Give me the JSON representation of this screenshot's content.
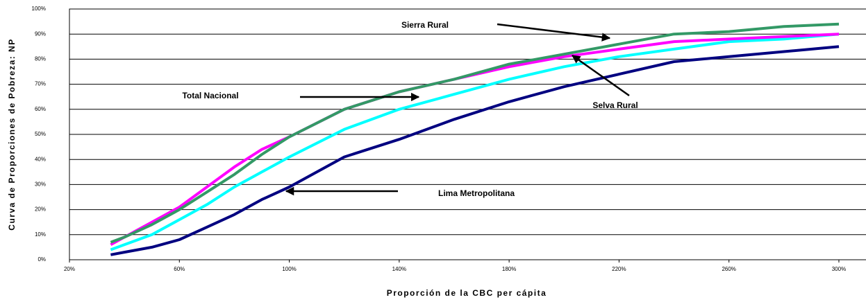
{
  "chart_data": {
    "type": "line",
    "y_label": "Curva de Proporciones de Pobreza:  NP",
    "x_label": "Proporción de la CBC per cápita",
    "annotations": [
      "Sierra Rural",
      "Total Nacional",
      "Selva Rural",
      "Lima Metropolitana"
    ],
    "x": [
      35,
      40,
      50,
      60,
      70,
      80,
      90,
      100,
      120,
      140,
      160,
      180,
      200,
      220,
      240,
      260,
      280,
      300
    ],
    "series": [
      {
        "name": "Lima Metropolitana",
        "color": "#000080",
        "values": [
          2,
          3,
          5,
          8,
          13,
          18,
          24,
          29,
          41,
          48,
          56,
          63,
          69,
          74,
          79,
          81,
          83,
          85
        ]
      },
      {
        "name": "Total Nacional",
        "color": "#00ffff",
        "values": [
          4,
          6,
          10,
          16,
          22,
          29,
          35,
          41,
          52,
          60,
          66,
          72,
          77,
          81,
          84,
          87,
          88,
          90
        ]
      },
      {
        "name": "Selva Rural",
        "color": "#ff00ff",
        "values": [
          6,
          9,
          15,
          21,
          29,
          37,
          44,
          49,
          60,
          67,
          72,
          77,
          81,
          84,
          87,
          88,
          89,
          90
        ]
      },
      {
        "name": "Sierra Rural",
        "color": "#339966",
        "values": [
          7,
          9,
          14,
          20,
          27,
          34,
          42,
          49,
          60,
          67,
          72,
          78,
          82,
          86,
          90,
          91,
          93,
          94
        ]
      }
    ],
    "xlim": [
      20,
      310
    ],
    "xticks": [
      {
        "value": 20,
        "label": "20%"
      },
      {
        "value": 60,
        "label": "60%"
      },
      {
        "value": 100,
        "label": "100%"
      },
      {
        "value": 140,
        "label": "140%"
      },
      {
        "value": 180,
        "label": "180%"
      },
      {
        "value": 220,
        "label": "220%"
      },
      {
        "value": 260,
        "label": "260%"
      },
      {
        "value": 300,
        "label": "300%"
      }
    ],
    "ylim": [
      0,
      100
    ],
    "yticks": [
      {
        "value": 0,
        "label": "0%"
      },
      {
        "value": 10,
        "label": "10%"
      },
      {
        "value": 20,
        "label": "20%"
      },
      {
        "value": 30,
        "label": "30%"
      },
      {
        "value": 40,
        "label": "40%"
      },
      {
        "value": 50,
        "label": "50%"
      },
      {
        "value": 60,
        "label": "60%"
      },
      {
        "value": 70,
        "label": "70%"
      },
      {
        "value": 80,
        "label": "80%"
      },
      {
        "value": 90,
        "label": "90%"
      },
      {
        "value": 100,
        "label": "100%"
      }
    ],
    "grid": true
  }
}
